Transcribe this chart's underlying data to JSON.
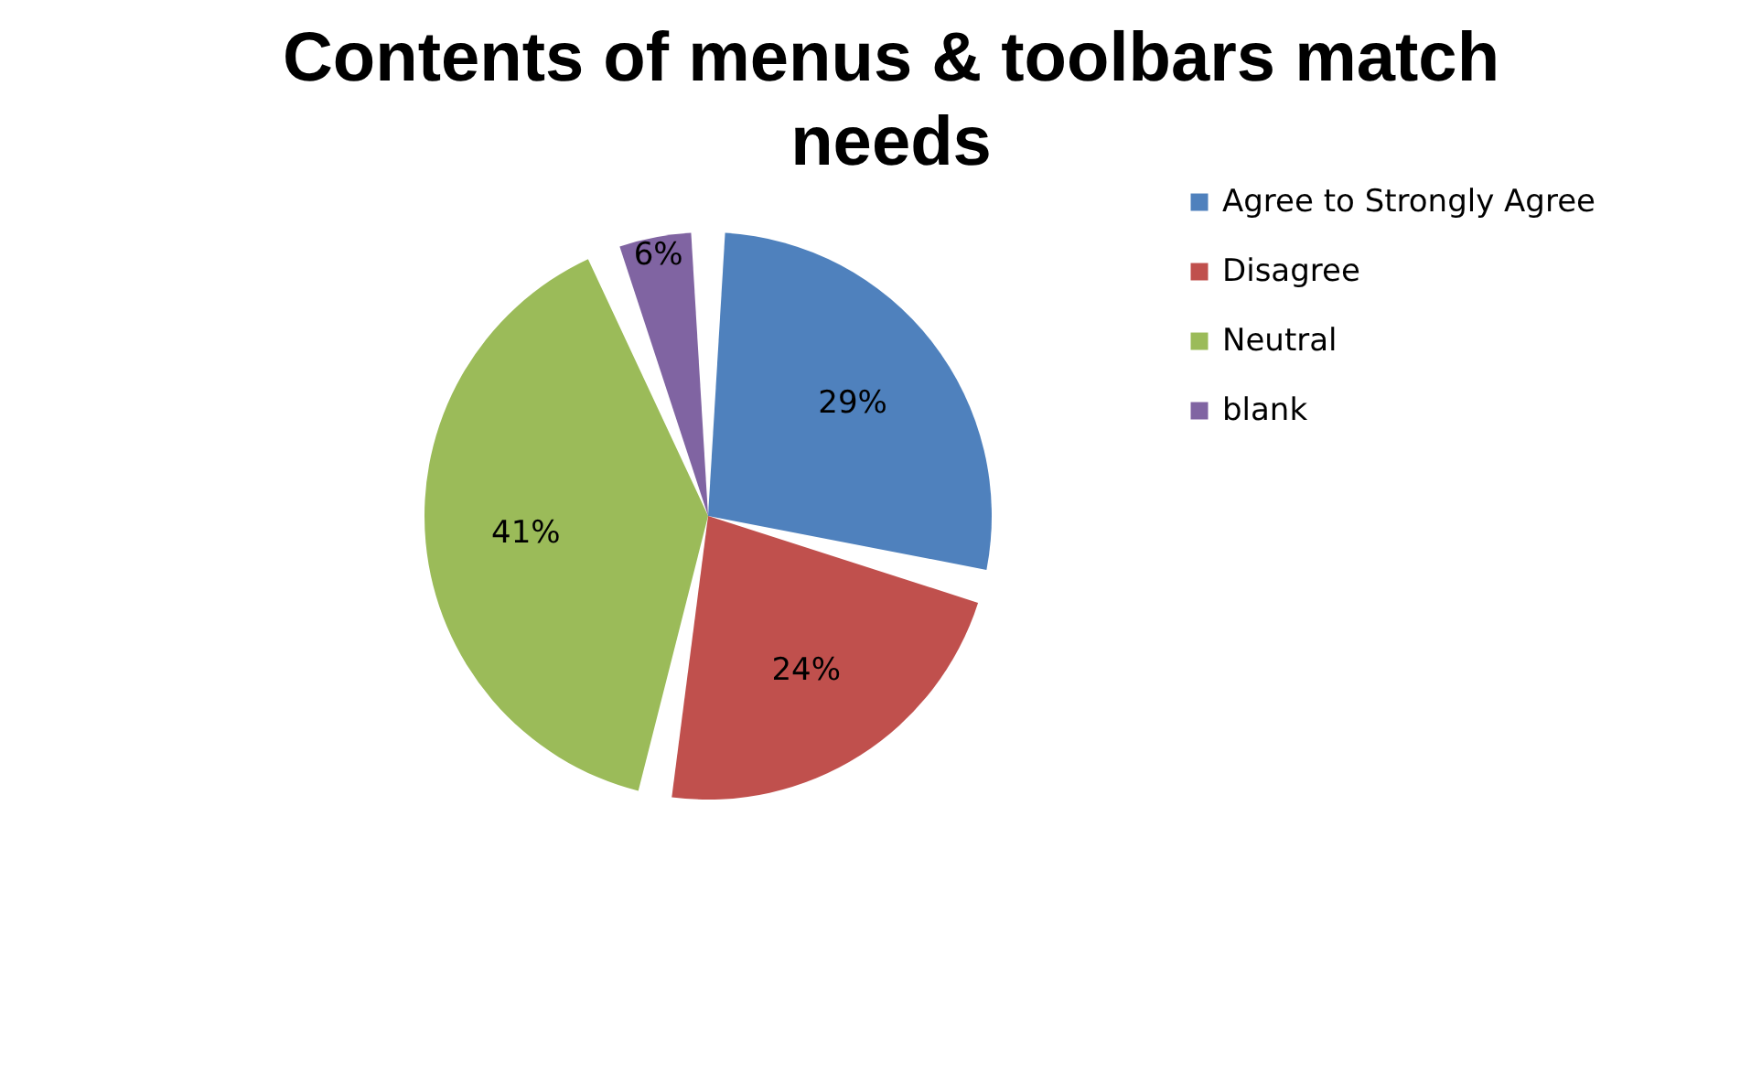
{
  "chart_data": {
    "type": "pie",
    "title": "Contents of menus & toolbars match needs",
    "categories": [
      "Agree to Strongly Agree",
      "Disagree",
      "Neutral",
      "blank"
    ],
    "values": [
      29,
      24,
      41,
      6
    ],
    "colors": [
      "#4f81bd",
      "#c0504d",
      "#9bbb59",
      "#8064a2"
    ],
    "value_labels": [
      "29%",
      "24%",
      "41%",
      "6%"
    ],
    "legend": "right"
  }
}
